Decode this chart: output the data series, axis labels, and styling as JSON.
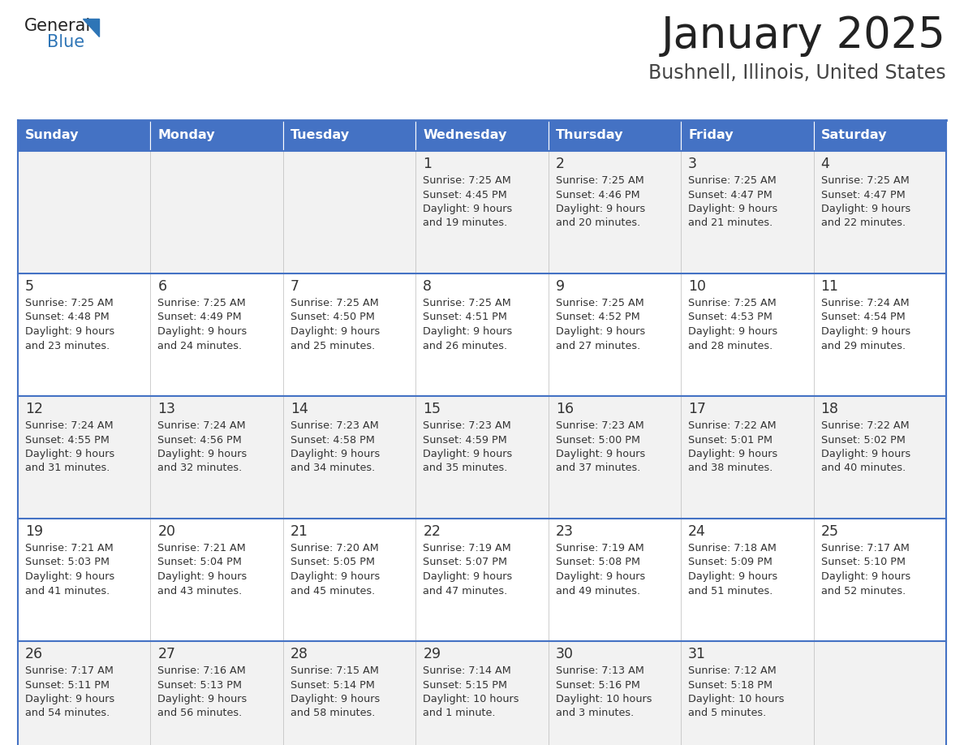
{
  "title": "January 2025",
  "subtitle": "Bushnell, Illinois, United States",
  "header_bg_color": "#4472C4",
  "header_text_color": "#FFFFFF",
  "day_names": [
    "Sunday",
    "Monday",
    "Tuesday",
    "Wednesday",
    "Thursday",
    "Friday",
    "Saturday"
  ],
  "row_bg_colors": [
    "#F2F2F2",
    "#FFFFFF"
  ],
  "grid_line_color": "#4472C4",
  "date_text_color": "#333333",
  "info_text_color": "#333333",
  "title_color": "#222222",
  "subtitle_color": "#444444",
  "logo_general_color": "#222222",
  "logo_blue_color": "#2E75B6",
  "calendar_data": [
    [
      null,
      null,
      null,
      {
        "day": 1,
        "sunrise": "7:25 AM",
        "sunset": "4:45 PM",
        "daylight": "9 hours and 19 minutes."
      },
      {
        "day": 2,
        "sunrise": "7:25 AM",
        "sunset": "4:46 PM",
        "daylight": "9 hours and 20 minutes."
      },
      {
        "day": 3,
        "sunrise": "7:25 AM",
        "sunset": "4:47 PM",
        "daylight": "9 hours and 21 minutes."
      },
      {
        "day": 4,
        "sunrise": "7:25 AM",
        "sunset": "4:47 PM",
        "daylight": "9 hours and 22 minutes."
      }
    ],
    [
      {
        "day": 5,
        "sunrise": "7:25 AM",
        "sunset": "4:48 PM",
        "daylight": "9 hours and 23 minutes."
      },
      {
        "day": 6,
        "sunrise": "7:25 AM",
        "sunset": "4:49 PM",
        "daylight": "9 hours and 24 minutes."
      },
      {
        "day": 7,
        "sunrise": "7:25 AM",
        "sunset": "4:50 PM",
        "daylight": "9 hours and 25 minutes."
      },
      {
        "day": 8,
        "sunrise": "7:25 AM",
        "sunset": "4:51 PM",
        "daylight": "9 hours and 26 minutes."
      },
      {
        "day": 9,
        "sunrise": "7:25 AM",
        "sunset": "4:52 PM",
        "daylight": "9 hours and 27 minutes."
      },
      {
        "day": 10,
        "sunrise": "7:25 AM",
        "sunset": "4:53 PM",
        "daylight": "9 hours and 28 minutes."
      },
      {
        "day": 11,
        "sunrise": "7:24 AM",
        "sunset": "4:54 PM",
        "daylight": "9 hours and 29 minutes."
      }
    ],
    [
      {
        "day": 12,
        "sunrise": "7:24 AM",
        "sunset": "4:55 PM",
        "daylight": "9 hours and 31 minutes."
      },
      {
        "day": 13,
        "sunrise": "7:24 AM",
        "sunset": "4:56 PM",
        "daylight": "9 hours and 32 minutes."
      },
      {
        "day": 14,
        "sunrise": "7:23 AM",
        "sunset": "4:58 PM",
        "daylight": "9 hours and 34 minutes."
      },
      {
        "day": 15,
        "sunrise": "7:23 AM",
        "sunset": "4:59 PM",
        "daylight": "9 hours and 35 minutes."
      },
      {
        "day": 16,
        "sunrise": "7:23 AM",
        "sunset": "5:00 PM",
        "daylight": "9 hours and 37 minutes."
      },
      {
        "day": 17,
        "sunrise": "7:22 AM",
        "sunset": "5:01 PM",
        "daylight": "9 hours and 38 minutes."
      },
      {
        "day": 18,
        "sunrise": "7:22 AM",
        "sunset": "5:02 PM",
        "daylight": "9 hours and 40 minutes."
      }
    ],
    [
      {
        "day": 19,
        "sunrise": "7:21 AM",
        "sunset": "5:03 PM",
        "daylight": "9 hours and 41 minutes."
      },
      {
        "day": 20,
        "sunrise": "7:21 AM",
        "sunset": "5:04 PM",
        "daylight": "9 hours and 43 minutes."
      },
      {
        "day": 21,
        "sunrise": "7:20 AM",
        "sunset": "5:05 PM",
        "daylight": "9 hours and 45 minutes."
      },
      {
        "day": 22,
        "sunrise": "7:19 AM",
        "sunset": "5:07 PM",
        "daylight": "9 hours and 47 minutes."
      },
      {
        "day": 23,
        "sunrise": "7:19 AM",
        "sunset": "5:08 PM",
        "daylight": "9 hours and 49 minutes."
      },
      {
        "day": 24,
        "sunrise": "7:18 AM",
        "sunset": "5:09 PM",
        "daylight": "9 hours and 51 minutes."
      },
      {
        "day": 25,
        "sunrise": "7:17 AM",
        "sunset": "5:10 PM",
        "daylight": "9 hours and 52 minutes."
      }
    ],
    [
      {
        "day": 26,
        "sunrise": "7:17 AM",
        "sunset": "5:11 PM",
        "daylight": "9 hours and 54 minutes."
      },
      {
        "day": 27,
        "sunrise": "7:16 AM",
        "sunset": "5:13 PM",
        "daylight": "9 hours and 56 minutes."
      },
      {
        "day": 28,
        "sunrise": "7:15 AM",
        "sunset": "5:14 PM",
        "daylight": "9 hours and 58 minutes."
      },
      {
        "day": 29,
        "sunrise": "7:14 AM",
        "sunset": "5:15 PM",
        "daylight": "10 hours and 1 minute."
      },
      {
        "day": 30,
        "sunrise": "7:13 AM",
        "sunset": "5:16 PM",
        "daylight": "10 hours and 3 minutes."
      },
      {
        "day": 31,
        "sunrise": "7:12 AM",
        "sunset": "5:18 PM",
        "daylight": "10 hours and 5 minutes."
      },
      null
    ]
  ]
}
